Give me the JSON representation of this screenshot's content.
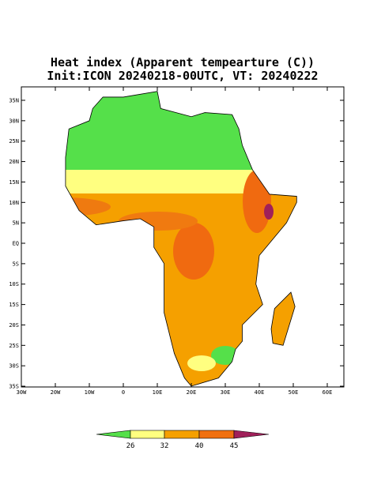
{
  "header": {
    "title": [
      "Heat index (Apparent tempearture (C))",
      "Init:ICON 20240218-00UTC, VT: 20240222"
    ]
  },
  "map": {
    "lat_labels": [
      "35N",
      "30N",
      "25N",
      "20N",
      "15N",
      "10N",
      "5N",
      "EQ",
      "5S",
      "10S",
      "15S",
      "20S",
      "25S",
      "30S",
      "35S"
    ],
    "lon_labels": [
      "30W",
      "20W",
      "10W",
      "0",
      "10E",
      "20E",
      "30E",
      "40E",
      "50E",
      "60E"
    ]
  },
  "legend": {
    "labels": [
      "26",
      "32",
      "40",
      "45"
    ]
  }
}
